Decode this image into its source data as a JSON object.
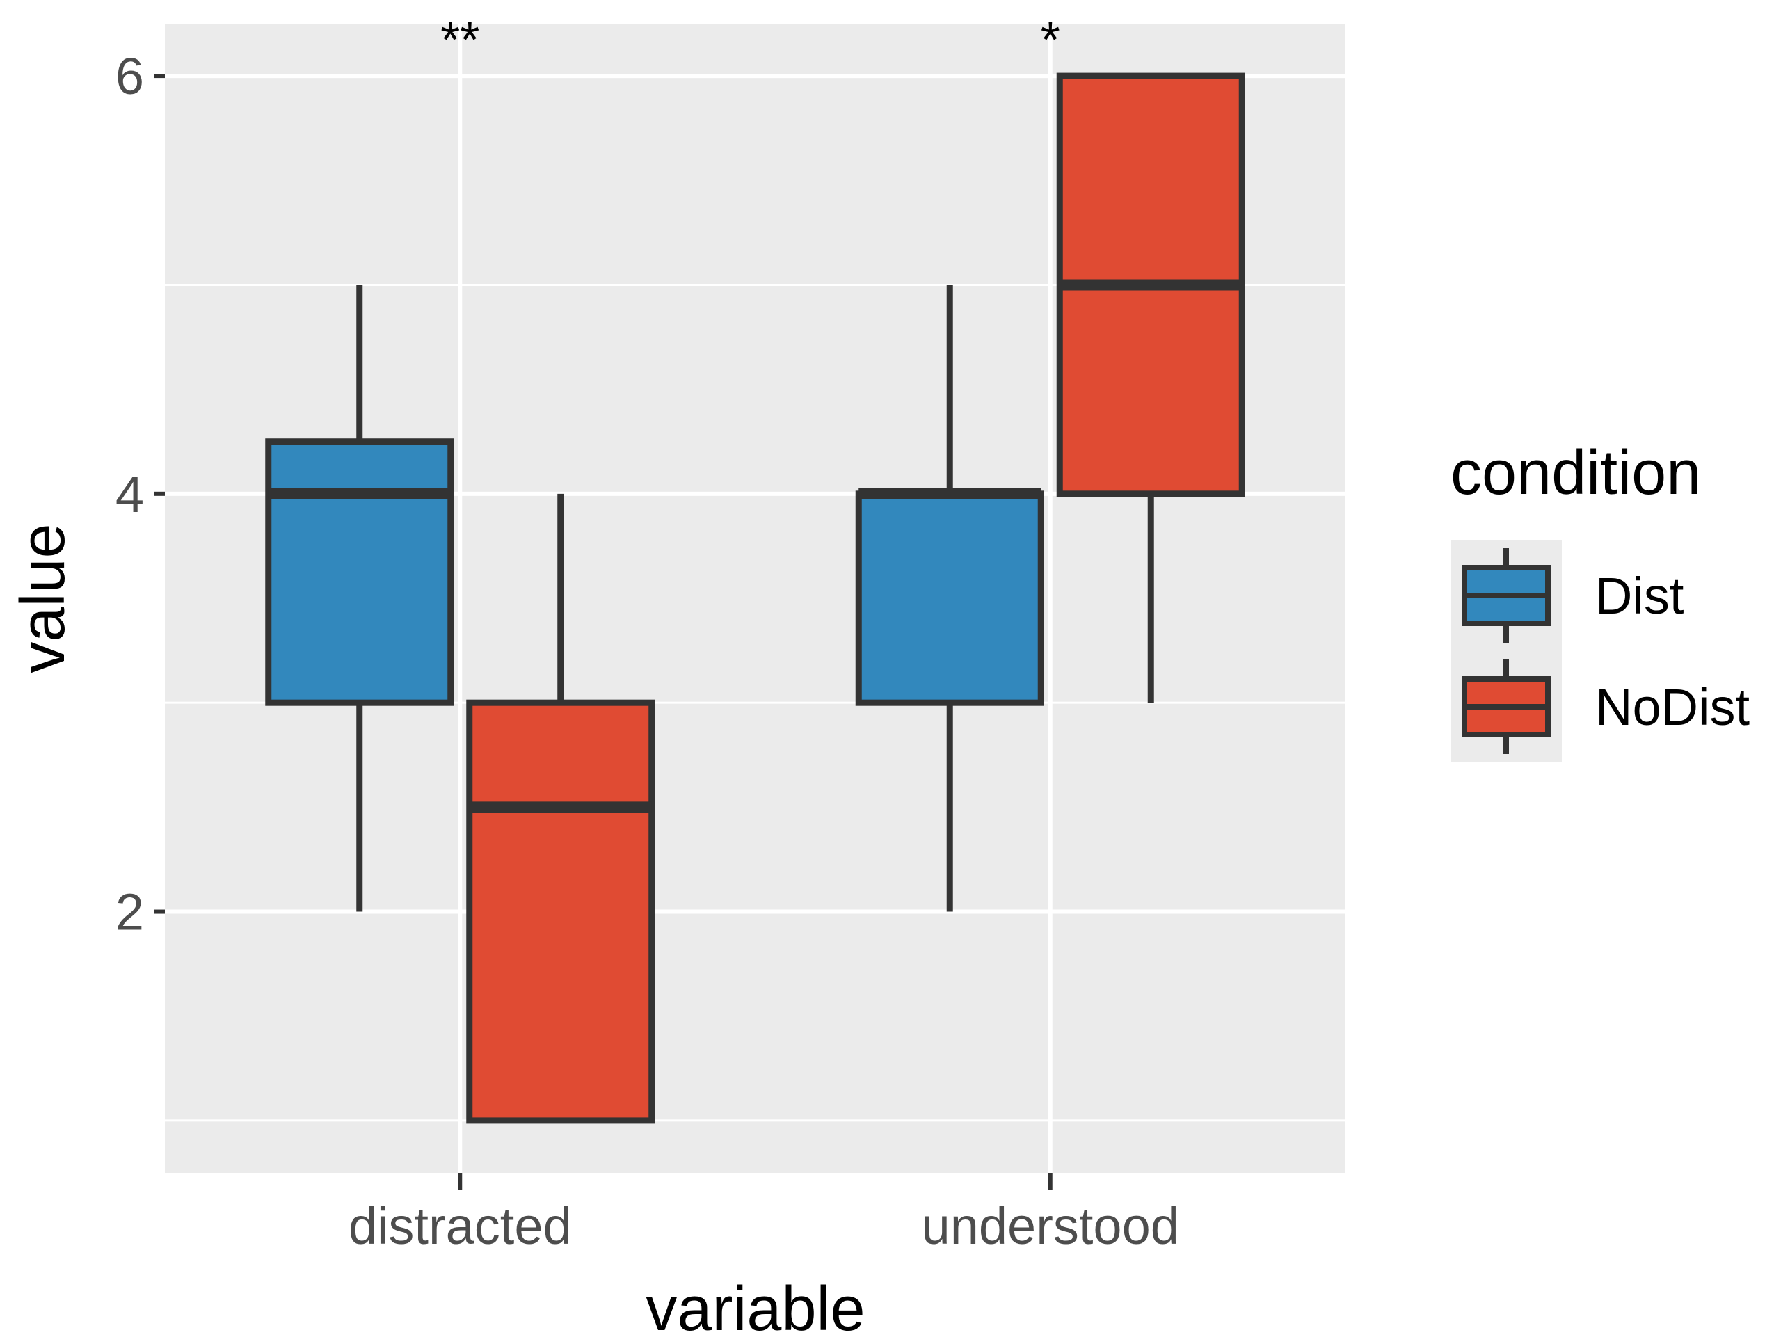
{
  "chart_data": {
    "type": "boxplot",
    "title": "",
    "xlabel": "variable",
    "ylabel": "value",
    "categories": [
      "distracted",
      "understood"
    ],
    "ylim": [
      0.75,
      6.25
    ],
    "yticks": [
      2,
      4,
      6
    ],
    "grid": true,
    "legend": {
      "title": "condition",
      "position": "right",
      "entries": [
        "Dist",
        "NoDist"
      ]
    },
    "series": [
      {
        "name": "Dist",
        "color": "#3288BD",
        "boxes": [
          {
            "category": "distracted",
            "min": 2,
            "q1": 3,
            "median": 4,
            "q3": 4.25,
            "max": 5
          },
          {
            "category": "understood",
            "min": 2,
            "q1": 3,
            "median": 4,
            "q3": 4,
            "max": 5
          }
        ]
      },
      {
        "name": "NoDist",
        "color": "#E04B33",
        "boxes": [
          {
            "category": "distracted",
            "min": 1,
            "q1": 1,
            "median": 2.5,
            "q3": 3,
            "max": 4
          },
          {
            "category": "understood",
            "min": 3,
            "q1": 4,
            "median": 5,
            "q3": 6,
            "max": 6
          }
        ]
      }
    ],
    "annotations": [
      {
        "category": "distracted",
        "text": "**"
      },
      {
        "category": "understood",
        "text": "*"
      }
    ]
  }
}
